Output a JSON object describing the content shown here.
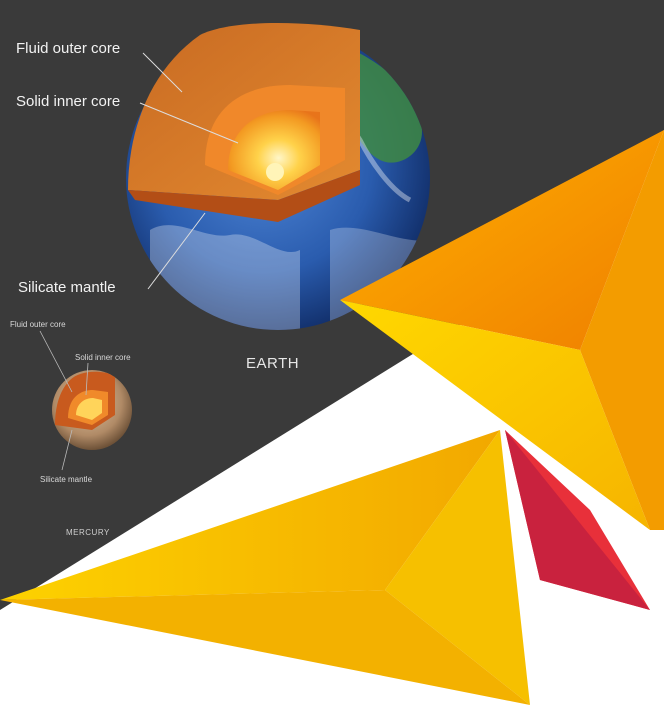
{
  "earth": {
    "name": "EARTH",
    "labels": {
      "outer_core": "Fluid outer core",
      "inner_core": "Solid inner core",
      "mantle": "Silicate mantle"
    }
  },
  "mercury": {
    "name": "MERCURY",
    "labels": {
      "outer_core": "Fluid outer core",
      "inner_core": "Solid inner core",
      "mantle": "Silicate mantle"
    }
  },
  "colors": {
    "panel_background": "#3a3a3a",
    "accent_yellow": "#f7c600",
    "accent_orange": "#f08a00",
    "accent_red": "#e8303a",
    "accent_blue": "#1e9be0",
    "accent_green": "#7ab51d"
  }
}
